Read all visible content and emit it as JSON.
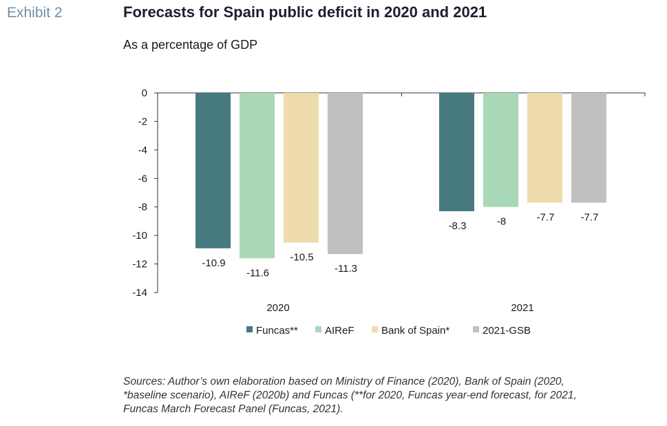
{
  "header": {
    "exhibit": "Exhibit 2",
    "title": "Forecasts for Spain public deficit in 2020 and 2021",
    "subtitle": "As a percentage of GDP"
  },
  "chart_data": {
    "type": "bar",
    "categories": [
      "2020",
      "2021"
    ],
    "series": [
      {
        "name": "Funcas**",
        "color": "#467a80",
        "values": [
          -10.9,
          -8.3
        ],
        "labels": [
          "-10.9",
          "-8.3"
        ]
      },
      {
        "name": "AIReF",
        "color": "#a8d8b8",
        "values": [
          -11.6,
          -8.0
        ],
        "labels": [
          "-11.6",
          "-8"
        ]
      },
      {
        "name": "Bank of Spain*",
        "color": "#eedcae",
        "values": [
          -10.5,
          -7.7
        ],
        "labels": [
          "-10.5",
          "-7.7"
        ]
      },
      {
        "name": "2021-GSB",
        "color": "#c0c0c0",
        "values": [
          -11.3,
          -7.7
        ],
        "labels": [
          "-11.3",
          "-7.7"
        ]
      }
    ],
    "yticks": [
      0,
      -2,
      -4,
      -6,
      -8,
      -10,
      -12,
      -14
    ],
    "ylim": [
      -14,
      0
    ],
    "legend_position": "bottom",
    "grid": false
  },
  "sources": {
    "line1": "Sources: Author’s own elaboration based on Ministry of Finance (2020), Bank of Spain (2020,",
    "line2": "*baseline scenario), AIReF (2020b) and Funcas (**for 2020, Funcas year-end forecast, for 2021,",
    "line3": "Funcas March Forecast Panel (Funcas, 2021)."
  }
}
